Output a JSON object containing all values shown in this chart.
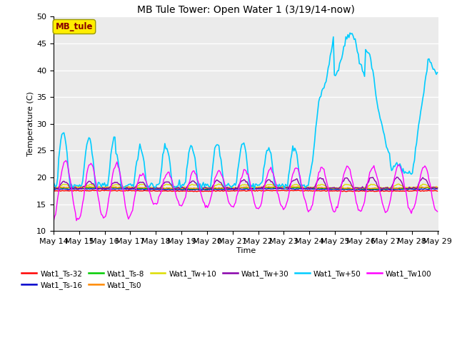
{
  "title": "MB Tule Tower: Open Water 1 (3/19/14-now)",
  "xlabel": "Time",
  "ylabel": "Temperature (C)",
  "ylim": [
    10,
    50
  ],
  "xlim": [
    0,
    370
  ],
  "plot_bg": "#ebebeb",
  "series_colors": {
    "Wat1_Ts-32": "#ff0000",
    "Wat1_Ts-16": "#0000cc",
    "Wat1_Ts-8": "#00cc00",
    "Wat1_Ts0": "#ff8800",
    "Wat1_Tw+10": "#dddd00",
    "Wat1_Tw+30": "#8800aa",
    "Wat1_Tw+50": "#00ccff",
    "Wat1_Tw100": "#ff00ff"
  },
  "legend_label": "MB_tule",
  "legend_box_color": "#ffee00",
  "legend_text_color": "#880000",
  "n_points": 370,
  "tick_dates": [
    "May 14",
    "May 15",
    "May 16",
    "May 17",
    "May 18",
    "May 19",
    "May 20",
    "May 21",
    "May 22",
    "May 23",
    "May 24",
    "May 25",
    "May 26",
    "May 27",
    "May 28",
    "May 29"
  ]
}
